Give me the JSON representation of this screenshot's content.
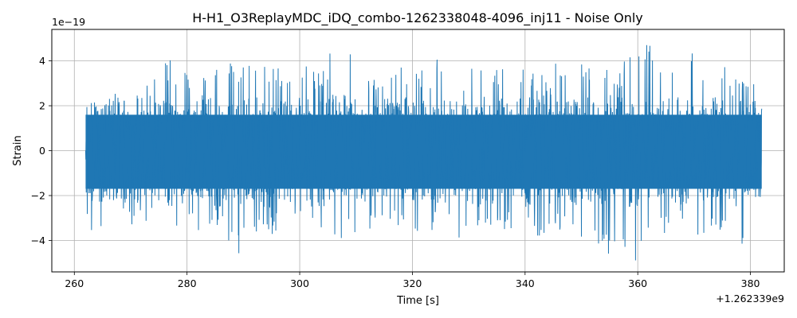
{
  "chart_data": {
    "type": "line",
    "title": "H-H1_O3ReplayMDC_iDQ_combo-1262338048-4096_inj11 - Noise Only",
    "xlabel": "Time [s]",
    "ylabel": "Strain",
    "x_offset_label": "+1.262339e9",
    "y_scale_label": "1e−19",
    "xlim": [
      1262339256,
      1262339386
    ],
    "ylim": [
      -5.4e-19,
      5.4e-19
    ],
    "x_tick_labels": [
      "260",
      "280",
      "300",
      "320",
      "340",
      "360",
      "380"
    ],
    "y_tick_labels": [
      "−4",
      "−2",
      "0",
      "2",
      "4"
    ],
    "grid": true,
    "series": [
      {
        "color": "#1f77b4",
        "x_start": 1262339262,
        "x_end": 1262339382,
        "envelope_y_max": [
          3.5e-19,
          2.6e-19,
          2.8e-19,
          3.8e-19,
          4.1e-19,
          3.7e-19,
          3.8e-19,
          3.6e-19,
          3.9e-19,
          4.2e-19,
          3.8e-19,
          3.7e-19,
          4e-19,
          3.6e-19,
          4.4e-19,
          4.8e-19,
          3.5e-19,
          3.4e-19,
          3.9e-19,
          3.6e-19,
          4.2e-19,
          3.5e-19,
          3.9e-19,
          3.6e-19,
          4.1e-19,
          3.7e-19,
          3.4e-19,
          3.9e-19,
          4.3e-19,
          3.9e-19,
          3.7e-19,
          4.3e-19,
          4.8e-19,
          3.8e-19,
          4.4e-19,
          3.6e-19,
          4.2e-19,
          3.2e-19,
          3e-19
        ],
        "envelope_y_min": [
          -3.6e-19,
          -3e-19,
          -3.3e-19,
          -3.3e-19,
          -3.8e-19,
          -3.5e-19,
          -3.7e-19,
          -3.5e-19,
          -4.6e-19,
          -4.4e-19,
          -3.8e-19,
          -3.6e-19,
          -3.3e-19,
          -3.9e-19,
          -4.2e-19,
          -3.7e-19,
          -3.5e-19,
          -3.3e-19,
          -3.6e-19,
          -3.8e-19,
          -3.5e-19,
          -3.9e-19,
          -3.7e-19,
          -3.3e-19,
          -3.6e-19,
          -3.5e-19,
          -3.8e-19,
          -3.6e-19,
          -3.9e-19,
          -4.3e-19,
          -4.7e-19,
          -4.9e-19,
          -4.1e-19,
          -3.8e-19,
          -3.5e-19,
          -3.9e-19,
          -3.6e-19,
          -4.6e-19,
          -4.1e-19
        ],
        "core_y_max": [
          1.6e-19,
          1.7e-19,
          1.6e-19,
          1.8e-19,
          1.7e-19,
          1.6e-19,
          1.8e-19,
          1.7e-19,
          1.6e-19,
          1.7e-19,
          1.8e-19,
          1.6e-19,
          1.7e-19,
          1.6e-19,
          1.8e-19,
          1.7e-19,
          1.6e-19,
          1.7e-19,
          1.8e-19,
          1.6e-19,
          1.7e-19,
          1.6e-19,
          1.8e-19,
          1.7e-19,
          1.6e-19,
          1.7e-19,
          1.8e-19,
          1.6e-19,
          1.7e-19,
          1.6e-19,
          1.8e-19,
          1.7e-19,
          1.6e-19,
          1.7e-19,
          1.8e-19,
          1.6e-19,
          1.7e-19,
          1.6e-19,
          1.8e-19
        ],
        "core_y_min": [
          -1.7e-19,
          -1.8e-19,
          -1.7e-19,
          -1.6e-19,
          -1.8e-19,
          -1.7e-19,
          -1.6e-19,
          -1.8e-19,
          -1.7e-19,
          -1.6e-19,
          -1.8e-19,
          -1.7e-19,
          -1.6e-19,
          -1.8e-19,
          -1.7e-19,
          -1.6e-19,
          -1.8e-19,
          -1.7e-19,
          -1.6e-19,
          -1.8e-19,
          -1.7e-19,
          -1.6e-19,
          -1.8e-19,
          -1.7e-19,
          -1.6e-19,
          -1.8e-19,
          -1.7e-19,
          -1.6e-19,
          -1.8e-19,
          -1.7e-19,
          -1.6e-19,
          -1.8e-19,
          -1.7e-19,
          -1.6e-19,
          -1.8e-19,
          -1.7e-19,
          -1.6e-19,
          -1.8e-19,
          -1.7e-19
        ]
      }
    ]
  }
}
